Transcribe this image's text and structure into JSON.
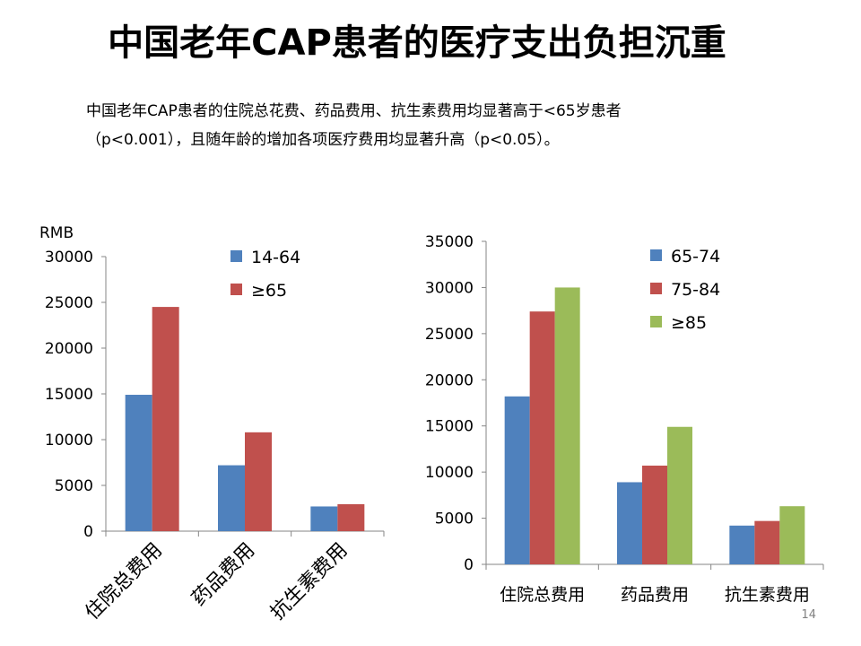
{
  "title": "中国老年CAP患者的医疗支出负担沉重",
  "summary": {
    "line1": "中国老年CAP患者的住院总花费、药品费用、抗生素费用均显著高于<65岁患者",
    "line2": "（p<0.001），且随年龄的增加各项医疗费用均显著升高（p<0.05）。"
  },
  "page_number": "14",
  "chart_data": [
    {
      "type": "bar",
      "title": "",
      "unit_label": "RMB",
      "xlabel": "",
      "ylabel": "",
      "categories": [
        "住院总费用",
        "药品费用",
        "抗生素费用"
      ],
      "category_label_rotation": "rotated",
      "ylim": [
        0,
        30000
      ],
      "yticks": [
        0,
        5000,
        10000,
        15000,
        20000,
        25000,
        30000
      ],
      "grid": false,
      "legend_position": "top-right",
      "series": [
        {
          "name": "14-64",
          "color": "#4F81BD",
          "values": [
            14900,
            7200,
            2700
          ]
        },
        {
          "name": "≥65",
          "color": "#C0504D",
          "values": [
            24500,
            10800,
            2950
          ]
        }
      ]
    },
    {
      "type": "bar",
      "title": "",
      "xlabel": "",
      "ylabel": "",
      "categories": [
        "住院总费用",
        "药品费用",
        "抗生素费用"
      ],
      "category_label_rotation": "horizontal",
      "ylim": [
        0,
        35000
      ],
      "yticks": [
        0,
        5000,
        10000,
        15000,
        20000,
        25000,
        30000,
        35000
      ],
      "grid": false,
      "legend_position": "top-right",
      "series": [
        {
          "name": "65-74",
          "color": "#4F81BD",
          "values": [
            18200,
            8900,
            4200
          ]
        },
        {
          "name": "75-84",
          "color": "#C0504D",
          "values": [
            27400,
            10700,
            4700
          ]
        },
        {
          "name": "≥85",
          "color": "#9BBB59",
          "values": [
            30000,
            14900,
            6300
          ]
        }
      ]
    }
  ]
}
